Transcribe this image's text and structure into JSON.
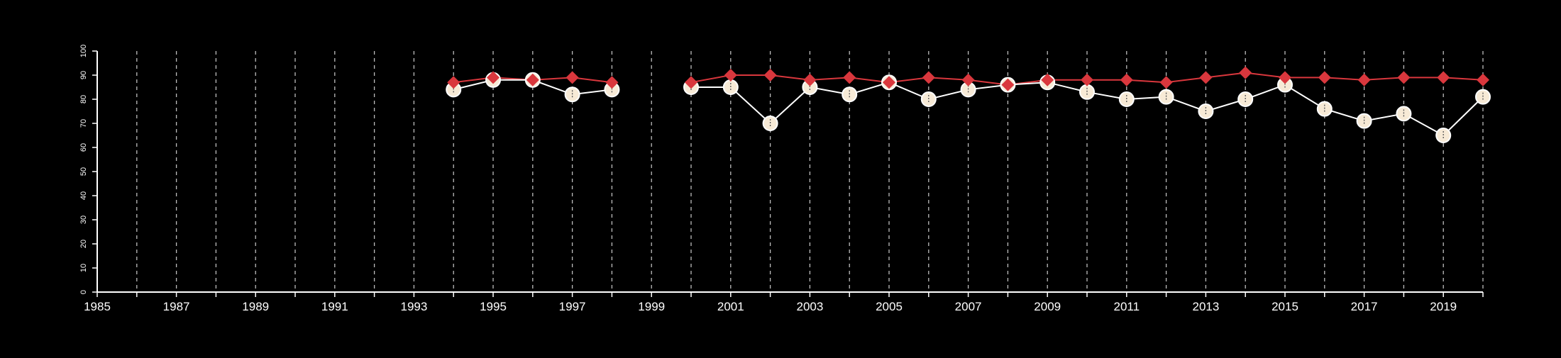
{
  "colors": {
    "background": "#000000",
    "axis": "#ffffff",
    "grid": "#bdbdbd",
    "series_red": "#d9373d",
    "series_cream": "#f7ead6",
    "circle_stroke": "#ffffff"
  },
  "chart_data": {
    "type": "line",
    "title": "",
    "xlabel": "",
    "ylabel": "",
    "xlim": [
      1985,
      2020
    ],
    "ylim": [
      0,
      100
    ],
    "x_tick_labels": [
      "1985",
      "1987",
      "1989",
      "1991",
      "1993",
      "1995",
      "1997",
      "1999",
      "2001",
      "2003",
      "2005",
      "2007",
      "2009",
      "2011",
      "2013",
      "2015",
      "2017",
      "2019"
    ],
    "y_tick_labels": [
      "0",
      "10",
      "20",
      "30",
      "40",
      "50",
      "60",
      "70",
      "80",
      "90",
      "100"
    ],
    "vertical_grid_years": [
      1986,
      1987,
      1988,
      1989,
      1990,
      1991,
      1992,
      1993,
      1994,
      1995,
      1996,
      1997,
      1998,
      1999,
      2000,
      2001,
      2002,
      2003,
      2004,
      2005,
      2006,
      2007,
      2008,
      2009,
      2010,
      2011,
      2012,
      2013,
      2014,
      2015,
      2016,
      2017,
      2018,
      2019,
      2020
    ],
    "grid": "vertical dashed",
    "legend": "none",
    "series": [
      {
        "marker": "diamond",
        "color": "#d9373d",
        "x": [
          1994,
          1995,
          1996,
          1997,
          1998,
          2000,
          2001,
          2002,
          2003,
          2004,
          2005,
          2006,
          2007,
          2008,
          2009,
          2010,
          2011,
          2012,
          2013,
          2014,
          2015,
          2016,
          2017,
          2018,
          2019,
          2020
        ],
        "y": [
          87,
          89,
          88,
          89,
          87,
          87,
          90,
          90,
          88,
          89,
          87,
          89,
          88,
          86,
          88,
          88,
          88,
          87,
          89,
          91,
          89,
          89,
          88,
          89,
          89,
          88
        ]
      },
      {
        "marker": "circle",
        "color": "#f7ead6",
        "x": [
          1994,
          1995,
          1996,
          1997,
          1998,
          2000,
          2001,
          2002,
          2003,
          2004,
          2005,
          2006,
          2007,
          2008,
          2009,
          2010,
          2011,
          2012,
          2013,
          2014,
          2015,
          2016,
          2017,
          2018,
          2019,
          2020
        ],
        "y": [
          84,
          88,
          88,
          82,
          84,
          85,
          85,
          70,
          85,
          82,
          87,
          80,
          84,
          86,
          87,
          83,
          80,
          81,
          75,
          80,
          86,
          76,
          71,
          74,
          65,
          81
        ]
      }
    ]
  }
}
